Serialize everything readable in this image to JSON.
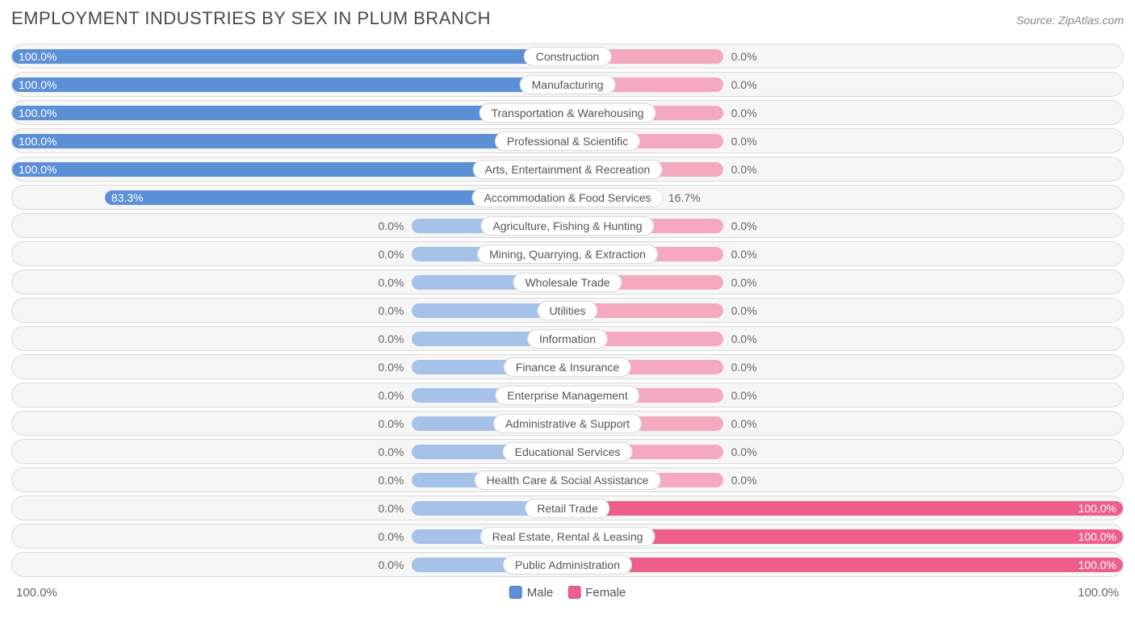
{
  "title": "EMPLOYMENT INDUSTRIES BY SEX IN PLUM BRANCH",
  "source": "Source: ZipAtlas.com",
  "chart": {
    "type": "diverging-bar-horizontal",
    "axis_left_label": "100.0%",
    "axis_right_label": "100.0%",
    "legend": [
      {
        "label": "Male",
        "color": "#5b8fd6"
      },
      {
        "label": "Female",
        "color": "#ed5f8a"
      }
    ],
    "colors": {
      "male_full": "#5b8fd6",
      "male_faded": "#a7c2e8",
      "female_full": "#ed5f8a",
      "female_faded": "#f5a9c0",
      "row_bg": "#f6f6f6",
      "row_border": "#d9d9d9",
      "text_dark": "#4a4a4a",
      "text_mid": "#666666",
      "min_bar_pct": 28
    },
    "rows": [
      {
        "category": "Construction",
        "male": 100.0,
        "female": 0.0
      },
      {
        "category": "Manufacturing",
        "male": 100.0,
        "female": 0.0
      },
      {
        "category": "Transportation & Warehousing",
        "male": 100.0,
        "female": 0.0
      },
      {
        "category": "Professional & Scientific",
        "male": 100.0,
        "female": 0.0
      },
      {
        "category": "Arts, Entertainment & Recreation",
        "male": 100.0,
        "female": 0.0
      },
      {
        "category": "Accommodation & Food Services",
        "male": 83.3,
        "female": 16.7
      },
      {
        "category": "Agriculture, Fishing & Hunting",
        "male": 0.0,
        "female": 0.0
      },
      {
        "category": "Mining, Quarrying, & Extraction",
        "male": 0.0,
        "female": 0.0
      },
      {
        "category": "Wholesale Trade",
        "male": 0.0,
        "female": 0.0
      },
      {
        "category": "Utilities",
        "male": 0.0,
        "female": 0.0
      },
      {
        "category": "Information",
        "male": 0.0,
        "female": 0.0
      },
      {
        "category": "Finance & Insurance",
        "male": 0.0,
        "female": 0.0
      },
      {
        "category": "Enterprise Management",
        "male": 0.0,
        "female": 0.0
      },
      {
        "category": "Administrative & Support",
        "male": 0.0,
        "female": 0.0
      },
      {
        "category": "Educational Services",
        "male": 0.0,
        "female": 0.0
      },
      {
        "category": "Health Care & Social Assistance",
        "male": 0.0,
        "female": 0.0
      },
      {
        "category": "Retail Trade",
        "male": 0.0,
        "female": 100.0
      },
      {
        "category": "Real Estate, Rental & Leasing",
        "male": 0.0,
        "female": 100.0
      },
      {
        "category": "Public Administration",
        "male": 0.0,
        "female": 100.0
      }
    ]
  }
}
